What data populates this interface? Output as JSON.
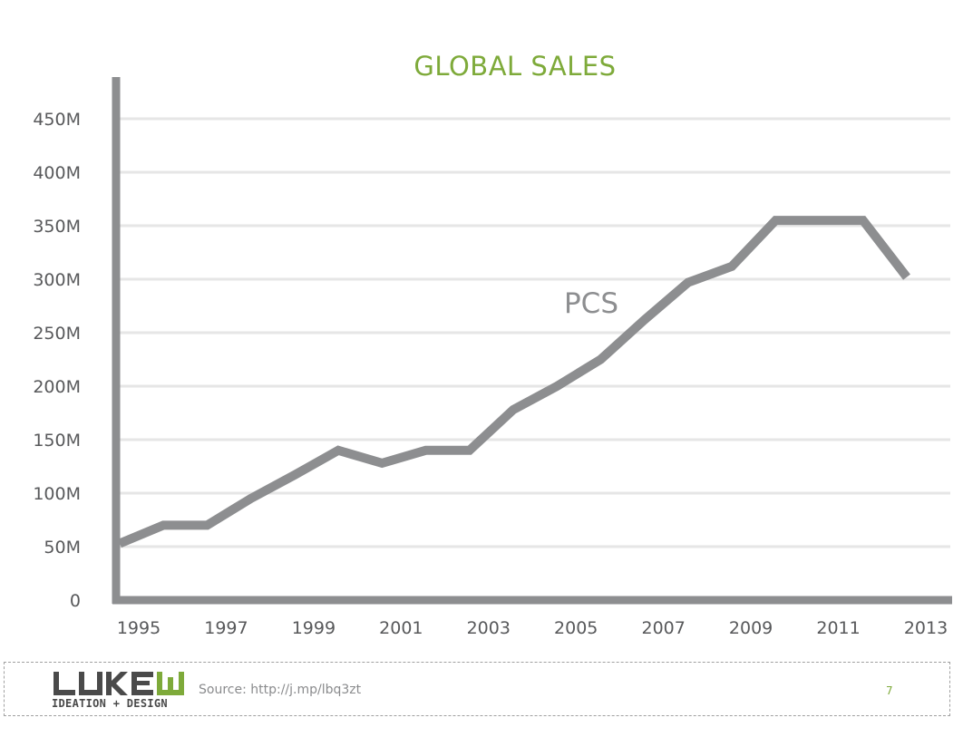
{
  "chart_data": {
    "type": "line",
    "title": "GLOBAL SALES",
    "xlabel": "",
    "ylabel": "",
    "x": [
      1995,
      1996,
      1997,
      1998,
      1999,
      2000,
      2001,
      2002,
      2003,
      2004,
      2005,
      2006,
      2007,
      2008,
      2009,
      2010,
      2011,
      2012,
      2013
    ],
    "series": [
      {
        "name": "PCS",
        "values": [
          53,
          70,
          70,
          95,
          117,
          140,
          128,
          140,
          140,
          178,
          200,
          225,
          262,
          297,
          312,
          355,
          355,
          355,
          302
        ]
      }
    ],
    "x_tick_labels": [
      "1995",
      "1997",
      "1999",
      "2001",
      "2003",
      "2005",
      "2007",
      "2009",
      "2011",
      "2013"
    ],
    "y_tick_labels": [
      "0",
      "50M",
      "100M",
      "150M",
      "200M",
      "250M",
      "300M",
      "350M",
      "400M",
      "450M"
    ],
    "y_ticks": [
      0,
      50,
      100,
      150,
      200,
      250,
      300,
      350,
      400,
      450
    ],
    "ylim": [
      0,
      450
    ],
    "xlim": [
      1995,
      2013
    ],
    "grid": true,
    "legend": "inline label",
    "colors": {
      "title": "#7eaa3a",
      "line": "#8d8e90",
      "axis": "#8d8e90",
      "grid": "#e6e6e6",
      "tick_text": "#58595b"
    }
  },
  "footer": {
    "logo_top": "LUKEW",
    "logo_bottom": "IDEATION + DESIGN",
    "source": "Source: http://j.mp/lbq3zt",
    "page_number": "7"
  }
}
